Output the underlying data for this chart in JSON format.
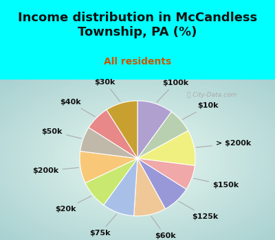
{
  "title": "Income distribution in McCandless\nTownship, PA (%)",
  "subtitle": "All residents",
  "watermark": "ⓘ City-Data.com",
  "background_color": "#00FFFF",
  "chart_bg_color": "#c8eee0",
  "slices": [
    {
      "label": "$100k",
      "value": 10,
      "color": "#b0a0d0"
    },
    {
      "label": "$10k",
      "value": 7,
      "color": "#b8d0b0"
    },
    {
      "label": "> $200k",
      "value": 10,
      "color": "#f0f080"
    },
    {
      "label": "$150k",
      "value": 7,
      "color": "#f0a8a8"
    },
    {
      "label": "$125k",
      "value": 8,
      "color": "#9898d8"
    },
    {
      "label": "$60k",
      "value": 9,
      "color": "#f0c898"
    },
    {
      "label": "$75k",
      "value": 9,
      "color": "#a8c0e8"
    },
    {
      "label": "$20k",
      "value": 8,
      "color": "#c8e870"
    },
    {
      "label": "$200k",
      "value": 9,
      "color": "#f8c878"
    },
    {
      "label": "$50k",
      "value": 7,
      "color": "#c0b8a8"
    },
    {
      "label": "$40k",
      "value": 7,
      "color": "#e88888"
    },
    {
      "label": "$30k",
      "value": 9,
      "color": "#c8a030"
    }
  ],
  "title_fontsize": 13,
  "subtitle_fontsize": 10,
  "title_color": "#111111",
  "subtitle_color": "#cc5500",
  "label_fontsize": 8,
  "watermark_color": "#aaaaaa"
}
